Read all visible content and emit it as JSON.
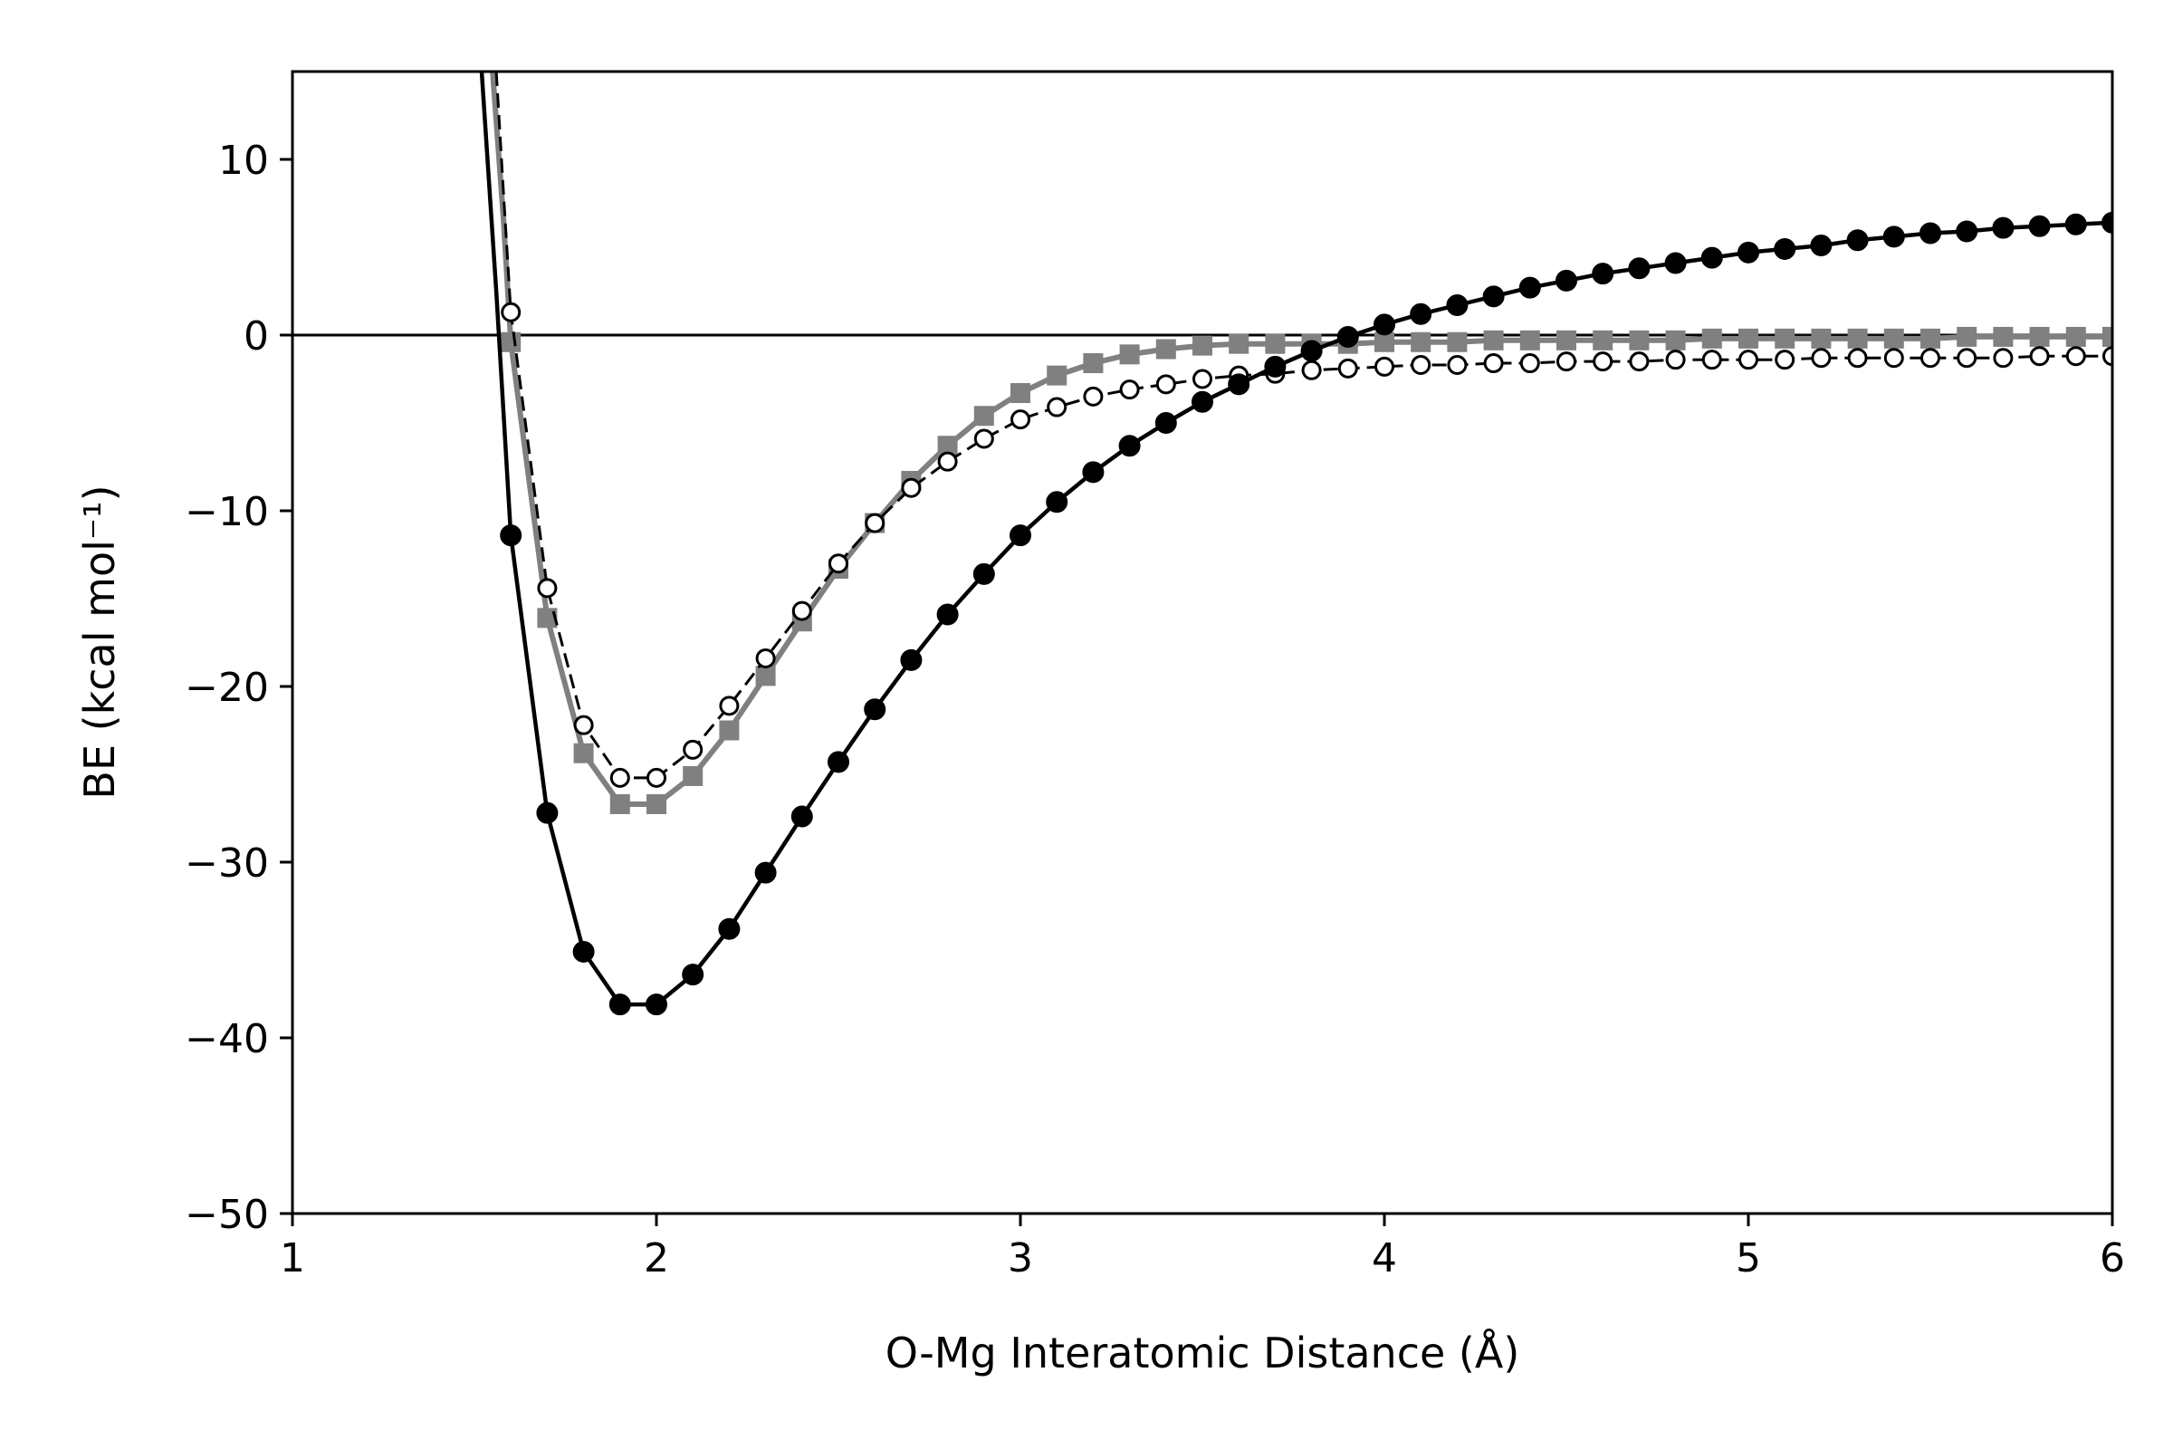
{
  "chart_data": {
    "type": "line",
    "xlabel": "O-Mg Interatomic Distance (Å)",
    "ylabel": "BE (kcal mol⁻¹)",
    "xlim": [
      1,
      6
    ],
    "ylim": [
      -50,
      15
    ],
    "xticks": [
      1,
      2,
      3,
      4,
      5,
      6
    ],
    "yticks": [
      -50,
      -40,
      -30,
      -20,
      -10,
      0,
      10
    ],
    "xtick_labels": [
      "1",
      "2",
      "3",
      "4",
      "5",
      "6"
    ],
    "ytick_labels": [
      "−50",
      "−40",
      "−30",
      "−20",
      "−10",
      "0",
      "10"
    ],
    "grid": false,
    "legend": "none",
    "reference_line_y": 0,
    "series": [
      {
        "style": "black solid line, filled circle markers",
        "color": "#000000",
        "x": [
          1.6,
          1.7,
          1.8,
          1.9,
          2.0,
          2.1,
          2.2,
          2.3,
          2.4,
          2.5,
          2.6,
          2.7,
          2.8,
          2.9,
          3.0,
          3.1,
          3.2,
          3.3,
          3.4,
          3.5,
          3.6,
          3.7,
          3.8,
          3.9,
          4.0,
          4.1,
          4.2,
          4.3,
          4.4,
          4.5,
          4.6,
          4.7,
          4.8,
          4.9,
          5.0,
          5.1,
          5.2,
          5.3,
          5.4,
          5.5,
          5.6,
          5.7,
          5.8,
          5.9,
          6.0
        ],
        "values": [
          -11.4,
          -27.2,
          -35.1,
          -38.1,
          -38.1,
          -36.4,
          -33.8,
          -30.6,
          -27.4,
          -24.3,
          -21.3,
          -18.5,
          -15.9,
          -13.6,
          -11.4,
          -9.5,
          -7.8,
          -6.3,
          -5.0,
          -3.8,
          -2.8,
          -1.8,
          -0.9,
          -0.1,
          0.6,
          1.2,
          1.7,
          2.2,
          2.7,
          3.1,
          3.5,
          3.8,
          4.1,
          4.4,
          4.7,
          4.9,
          5.1,
          5.4,
          5.6,
          5.8,
          5.9,
          6.1,
          6.2,
          6.3,
          6.4
        ]
      },
      {
        "style": "gray solid line, square markers",
        "color": "#808080",
        "x": [
          1.6,
          1.7,
          1.8,
          1.9,
          2.0,
          2.1,
          2.2,
          2.3,
          2.4,
          2.5,
          2.6,
          2.7,
          2.8,
          2.9,
          3.0,
          3.1,
          3.2,
          3.3,
          3.4,
          3.5,
          3.6,
          3.7,
          3.8,
          3.9,
          4.0,
          4.1,
          4.2,
          4.3,
          4.4,
          4.5,
          4.6,
          4.7,
          4.8,
          4.9,
          5.0,
          5.1,
          5.2,
          5.3,
          5.4,
          5.5,
          5.6,
          5.7,
          5.8,
          5.9,
          6.0
        ],
        "values": [
          -0.4,
          -16.1,
          -23.8,
          -26.7,
          -26.7,
          -25.1,
          -22.5,
          -19.4,
          -16.3,
          -13.3,
          -10.7,
          -8.3,
          -6.3,
          -4.6,
          -3.3,
          -2.3,
          -1.6,
          -1.1,
          -0.8,
          -0.6,
          -0.5,
          -0.5,
          -0.5,
          -0.5,
          -0.4,
          -0.4,
          -0.4,
          -0.3,
          -0.3,
          -0.3,
          -0.3,
          -0.3,
          -0.3,
          -0.2,
          -0.2,
          -0.2,
          -0.2,
          -0.2,
          -0.2,
          -0.2,
          -0.1,
          -0.1,
          -0.1,
          -0.1,
          -0.1
        ]
      },
      {
        "style": "black dashed line, open circle markers",
        "color": "#000000",
        "x": [
          1.6,
          1.7,
          1.8,
          1.9,
          2.0,
          2.1,
          2.2,
          2.3,
          2.4,
          2.5,
          2.6,
          2.7,
          2.8,
          2.9,
          3.0,
          3.1,
          3.2,
          3.3,
          3.4,
          3.5,
          3.6,
          3.7,
          3.8,
          3.9,
          4.0,
          4.1,
          4.2,
          4.3,
          4.4,
          4.5,
          4.6,
          4.7,
          4.8,
          4.9,
          5.0,
          5.1,
          5.2,
          5.3,
          5.4,
          5.5,
          5.6,
          5.7,
          5.8,
          5.9,
          6.0
        ],
        "values": [
          1.3,
          -14.4,
          -22.2,
          -25.2,
          -25.2,
          -23.6,
          -21.1,
          -18.4,
          -15.7,
          -13.0,
          -10.7,
          -8.7,
          -7.2,
          -5.9,
          -4.8,
          -4.1,
          -3.5,
          -3.1,
          -2.8,
          -2.5,
          -2.3,
          -2.2,
          -2.0,
          -1.9,
          -1.8,
          -1.7,
          -1.7,
          -1.6,
          -1.6,
          -1.5,
          -1.5,
          -1.5,
          -1.4,
          -1.4,
          -1.4,
          -1.4,
          -1.3,
          -1.3,
          -1.3,
          -1.3,
          -1.3,
          -1.3,
          -1.2,
          -1.2,
          -1.2
        ]
      }
    ],
    "offscale_entry": [
      {
        "series": 0,
        "x": [
          1.52,
          1.56,
          1.6
        ],
        "values": [
          15,
          2.5,
          -11.4
        ]
      },
      {
        "series": 1,
        "x": [
          1.55,
          1.58,
          1.6
        ],
        "values": [
          15,
          6.5,
          -0.4
        ]
      },
      {
        "series": 2,
        "x": [
          1.56,
          1.58,
          1.6
        ],
        "values": [
          15,
          8.0,
          1.3
        ]
      }
    ]
  }
}
